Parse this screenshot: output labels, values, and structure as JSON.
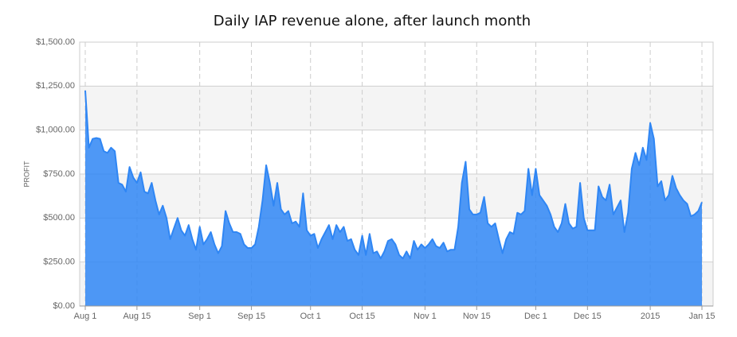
{
  "chart_data": {
    "type": "area",
    "title": "Daily IAP revenue alone, after launch month",
    "y_label": "PROFIT",
    "color": "#2f86f4",
    "grid": true,
    "categories": [
      "Aug 1",
      null,
      null,
      null,
      null,
      null,
      null,
      null,
      null,
      null,
      null,
      null,
      null,
      null,
      "Aug 15",
      null,
      null,
      null,
      null,
      null,
      null,
      null,
      null,
      null,
      null,
      null,
      null,
      null,
      null,
      null,
      null,
      "Sep 1",
      null,
      null,
      null,
      null,
      null,
      null,
      null,
      null,
      null,
      null,
      null,
      null,
      null,
      "Sep 15",
      null,
      null,
      null,
      null,
      null,
      null,
      null,
      null,
      null,
      null,
      null,
      null,
      null,
      null,
      null,
      "Oct 1",
      null,
      null,
      null,
      null,
      null,
      null,
      null,
      null,
      null,
      null,
      null,
      null,
      null,
      "Oct 15",
      null,
      null,
      null,
      null,
      null,
      null,
      null,
      null,
      null,
      null,
      null,
      null,
      null,
      null,
      null,
      null,
      "Nov 1",
      null,
      null,
      null,
      null,
      null,
      null,
      null,
      null,
      null,
      null,
      null,
      null,
      null,
      "Nov 15",
      null,
      null,
      null,
      null,
      null,
      null,
      null,
      null,
      null,
      null,
      null,
      null,
      null,
      null,
      null,
      "Dec 1",
      null,
      null,
      null,
      null,
      null,
      null,
      null,
      null,
      null,
      null,
      null,
      null,
      null,
      "Dec 15",
      null,
      null,
      null,
      null,
      null,
      null,
      null,
      null,
      null,
      null,
      null,
      null,
      null,
      null,
      null,
      null,
      "2015",
      null,
      null,
      null,
      null,
      null,
      null,
      null,
      null,
      null,
      null,
      null,
      null,
      null,
      "Jan 15"
    ],
    "values": [
      1225,
      900,
      950,
      955,
      950,
      880,
      870,
      900,
      880,
      700,
      690,
      650,
      790,
      730,
      700,
      760,
      650,
      640,
      700,
      600,
      520,
      570,
      500,
      380,
      440,
      500,
      430,
      400,
      460,
      380,
      320,
      450,
      350,
      380,
      420,
      350,
      300,
      340,
      540,
      470,
      420,
      420,
      410,
      350,
      330,
      330,
      350,
      450,
      600,
      800,
      700,
      570,
      700,
      550,
      520,
      540,
      470,
      480,
      450,
      640,
      430,
      400,
      410,
      330,
      380,
      420,
      460,
      380,
      460,
      420,
      450,
      370,
      380,
      320,
      290,
      400,
      290,
      410,
      300,
      310,
      270,
      310,
      370,
      380,
      350,
      290,
      270,
      310,
      270,
      370,
      320,
      350,
      330,
      350,
      380,
      340,
      330,
      360,
      310,
      320,
      320,
      450,
      700,
      820,
      550,
      520,
      520,
      530,
      620,
      470,
      450,
      470,
      380,
      300,
      380,
      420,
      410,
      530,
      520,
      540,
      780,
      630,
      780,
      630,
      600,
      570,
      520,
      450,
      420,
      470,
      580,
      470,
      440,
      450,
      700,
      500,
      430,
      430,
      430,
      680,
      620,
      600,
      690,
      520,
      560,
      600,
      420,
      530,
      780,
      870,
      800,
      900,
      830,
      1040,
      950,
      680,
      710,
      600,
      630,
      740,
      670,
      630,
      600,
      580,
      510,
      520,
      540,
      590
    ],
    "ylim": [
      0,
      1500
    ],
    "yticks": [
      {
        "value": 0,
        "label": "$0.00"
      },
      {
        "value": 250,
        "label": "$250.00"
      },
      {
        "value": 500,
        "label": "$500.00"
      },
      {
        "value": 750,
        "label": "$750.00"
      },
      {
        "value": 1000,
        "label": "$1,000.00"
      },
      {
        "value": 1250,
        "label": "$1,250.00"
      },
      {
        "value": 1500,
        "label": "$1,500.00"
      }
    ]
  }
}
